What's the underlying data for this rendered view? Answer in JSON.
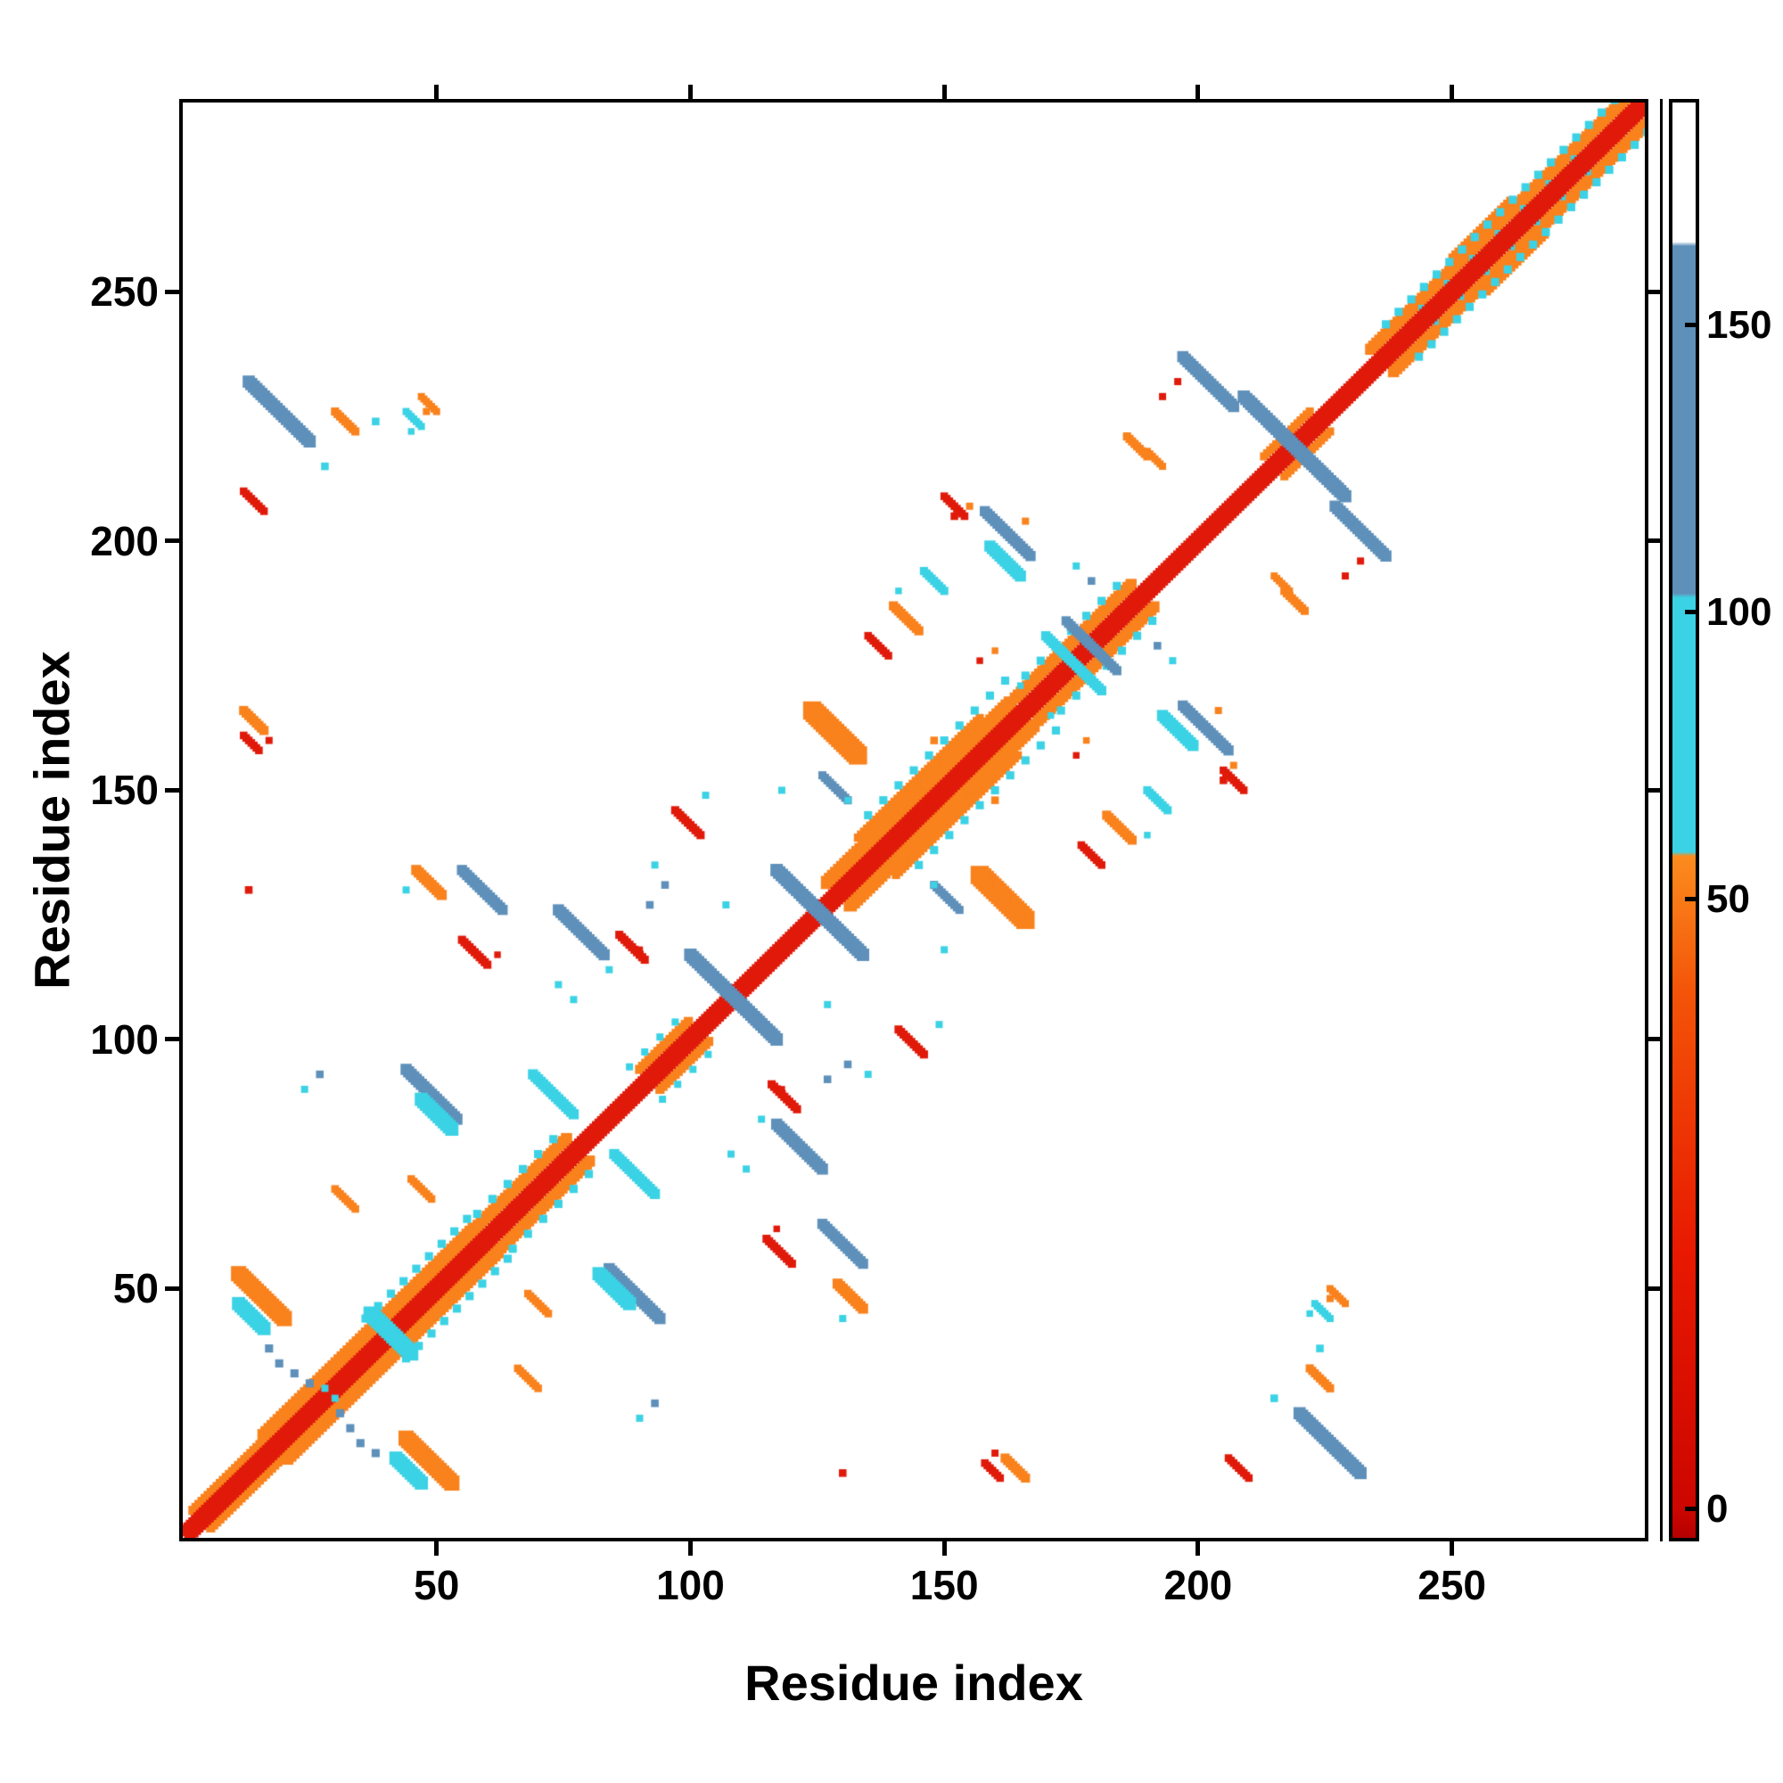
{
  "figure": {
    "background": "#ffffff"
  },
  "chart_data": {
    "type": "heatmap",
    "subtype": "protein-residue-contact-map",
    "title": "",
    "xlabel": "Residue index",
    "ylabel": "Residue index",
    "xlim": [
      0,
      288
    ],
    "ylim": [
      0,
      288
    ],
    "xticks": [
      50,
      100,
      150,
      200,
      250
    ],
    "yticks": [
      50,
      100,
      150,
      200,
      250
    ],
    "grid": false,
    "legend_position": "colorbar-right",
    "symmetric": true,
    "palette": {
      "red": "#e01a0a",
      "darkred": "#b50000",
      "orange": "#f9821d",
      "cyan": "#3bd2e5",
      "blue": "#5e90ba",
      "white": "#ffffff",
      "frame": "#000000"
    },
    "colorbar": {
      "ticks": [
        {
          "label": "0",
          "pos": 0.02
        },
        {
          "label": "50",
          "pos": 0.445
        },
        {
          "label": "100",
          "pos": 0.645
        },
        {
          "label": "150",
          "pos": 0.845
        }
      ],
      "stops": [
        {
          "pos": 0.0,
          "color": "#b50000"
        },
        {
          "pos": 0.02,
          "color": "#cc0600"
        },
        {
          "pos": 0.2,
          "color": "#e81900"
        },
        {
          "pos": 0.38,
          "color": "#f35408"
        },
        {
          "pos": 0.475,
          "color": "#fb8c1e"
        },
        {
          "pos": 0.478,
          "color": "#3bd2e5"
        },
        {
          "pos": 0.655,
          "color": "#3bd2e5"
        },
        {
          "pos": 0.658,
          "color": "#5e90ba"
        },
        {
          "pos": 0.9,
          "color": "#5e90ba"
        },
        {
          "pos": 0.903,
          "color": "#ffffff"
        },
        {
          "pos": 1.0,
          "color": "#ffffff"
        }
      ]
    },
    "diagonal": {
      "range": [
        0,
        288
      ],
      "offset": 1.2,
      "halfwidth": 1.8,
      "color": "red"
    },
    "flank_bands": [
      {
        "range": [
          2,
          16
        ],
        "offset": 3.5,
        "w": 1.8,
        "color": "orange"
      },
      {
        "range": [
          16,
          58
        ],
        "offset": 4.5,
        "w": 2.6,
        "color": "orange"
      },
      {
        "range": [
          57,
          76
        ],
        "offset": 4.5,
        "w": 2.2,
        "color": "orange"
      },
      {
        "range": [
          90,
          100
        ],
        "offset": 4.0,
        "w": 1.8,
        "color": "orange"
      },
      {
        "range": [
          127,
          163
        ],
        "offset": 4.5,
        "w": 2.6,
        "color": "orange"
      },
      {
        "range": [
          133,
          157
        ],
        "offset": 7.5,
        "w": 1.6,
        "color": "orange"
      },
      {
        "range": [
          164,
          187
        ],
        "offset": 4.5,
        "w": 2.2,
        "color": "orange"
      },
      {
        "range": [
          213,
          222
        ],
        "offset": 4.0,
        "w": 1.6,
        "color": "orange"
      },
      {
        "range": [
          234,
          286
        ],
        "offset": 4.5,
        "w": 2.2,
        "color": "orange"
      },
      {
        "range": [
          250,
          262
        ],
        "offset": 7.0,
        "w": 1.4,
        "color": "orange"
      }
    ],
    "fleck_bands": [
      {
        "range": [
          36,
          56
        ],
        "offset": 8.0,
        "step": 2.5,
        "size": 1.6
      },
      {
        "range": [
          58,
          75
        ],
        "offset": 7.0,
        "step": 3.0,
        "size": 1.6
      },
      {
        "range": [
          88,
          98
        ],
        "offset": 6.5,
        "step": 3.0,
        "size": 1.4
      },
      {
        "range": [
          135,
          162
        ],
        "offset": 10.0,
        "step": 3.0,
        "size": 1.6
      },
      {
        "range": [
          166,
          185
        ],
        "offset": 7.0,
        "step": 3.0,
        "size": 1.6
      },
      {
        "range": [
          237,
          284
        ],
        "offset": 6.5,
        "step": 2.5,
        "size": 1.6
      },
      {
        "range": [
          244,
          278
        ],
        "offset": 2.8,
        "step": 5.0,
        "size": 1.2
      }
    ],
    "anti_segments": [
      {
        "x": 13,
        "y": 232,
        "len": 12,
        "w": 2.4,
        "color": "blue"
      },
      {
        "x": 11,
        "y": 53,
        "len": 9,
        "w": 3.0,
        "color": "orange"
      },
      {
        "x": 11,
        "y": 47,
        "len": 5,
        "w": 2.6,
        "color": "cyan"
      },
      {
        "x": 37,
        "y": 45,
        "len": 5,
        "w": 2.8,
        "color": "cyan"
      },
      {
        "x": 44,
        "y": 94,
        "len": 10,
        "w": 2.2,
        "color": "blue"
      },
      {
        "x": 47,
        "y": 88,
        "len": 6,
        "w": 2.6,
        "color": "cyan"
      },
      {
        "x": 55,
        "y": 134,
        "len": 8,
        "w": 2.0,
        "color": "blue"
      },
      {
        "x": 55,
        "y": 120,
        "len": 5,
        "w": 1.6,
        "color": "red"
      },
      {
        "x": 69,
        "y": 93,
        "len": 8,
        "w": 2.0,
        "color": "cyan"
      },
      {
        "x": 74,
        "y": 126,
        "len": 9,
        "w": 2.2,
        "color": "blue"
      },
      {
        "x": 86,
        "y": 121,
        "len": 5,
        "w": 1.6,
        "color": "red"
      },
      {
        "x": 100,
        "y": 117,
        "len": 17,
        "w": 2.4,
        "color": "blue"
      },
      {
        "x": 97,
        "y": 146,
        "len": 5,
        "w": 1.6,
        "color": "red"
      },
      {
        "x": 117,
        "y": 134,
        "len": 17,
        "w": 2.4,
        "color": "blue"
      },
      {
        "x": 124,
        "y": 166,
        "len": 9,
        "w": 3.6,
        "color": "orange"
      },
      {
        "x": 126,
        "y": 153,
        "len": 5,
        "w": 1.6,
        "color": "blue"
      },
      {
        "x": 140,
        "y": 187,
        "len": 5,
        "w": 1.8,
        "color": "orange"
      },
      {
        "x": 146,
        "y": 194,
        "len": 4,
        "w": 1.6,
        "color": "cyan"
      },
      {
        "x": 135,
        "y": 181,
        "len": 4,
        "w": 1.5,
        "color": "red"
      },
      {
        "x": 150,
        "y": 209,
        "len": 4,
        "w": 1.5,
        "color": "red"
      },
      {
        "x": 158,
        "y": 206,
        "len": 9,
        "w": 2.0,
        "color": "blue"
      },
      {
        "x": 159,
        "y": 199,
        "len": 6,
        "w": 2.2,
        "color": "cyan"
      },
      {
        "x": 170,
        "y": 181,
        "len": 11,
        "w": 1.8,
        "color": "cyan"
      },
      {
        "x": 174,
        "y": 184,
        "len": 6,
        "w": 1.8,
        "color": "blue"
      },
      {
        "x": 197,
        "y": 237,
        "len": 10,
        "w": 2.2,
        "color": "blue"
      },
      {
        "x": 209,
        "y": 229,
        "len": 19,
        "w": 2.4,
        "color": "blue"
      },
      {
        "x": 30,
        "y": 226,
        "len": 4,
        "w": 1.6,
        "color": "orange"
      },
      {
        "x": 12,
        "y": 210,
        "len": 4,
        "w": 1.5,
        "color": "red"
      },
      {
        "x": 12,
        "y": 166,
        "len": 4,
        "w": 1.8,
        "color": "orange"
      },
      {
        "x": 12,
        "y": 161,
        "len": 3,
        "w": 1.5,
        "color": "red"
      },
      {
        "x": 46,
        "y": 134,
        "len": 5,
        "w": 2.0,
        "color": "orange"
      },
      {
        "x": 30,
        "y": 70,
        "len": 4,
        "w": 1.5,
        "color": "orange"
      },
      {
        "x": 45,
        "y": 72,
        "len": 4,
        "w": 1.5,
        "color": "orange"
      },
      {
        "x": 186,
        "y": 221,
        "len": 4,
        "w": 1.6,
        "color": "orange"
      },
      {
        "x": 190,
        "y": 218,
        "len": 3,
        "w": 1.4,
        "color": "orange"
      },
      {
        "x": 44,
        "y": 226,
        "len": 3,
        "w": 1.4,
        "color": "cyan"
      },
      {
        "x": 47,
        "y": 229,
        "len": 3,
        "w": 1.4,
        "color": "orange"
      }
    ],
    "points": [
      [
        17,
        38,
        "blue",
        1.6
      ],
      [
        19,
        35,
        "blue",
        1.6
      ],
      [
        22,
        33,
        "blue",
        1.6
      ],
      [
        25,
        31,
        "blue",
        1.6
      ],
      [
        28,
        30,
        "cyan",
        1.4
      ],
      [
        28,
        215,
        "cyan",
        1.5
      ],
      [
        38,
        224,
        "cyan",
        1.5
      ],
      [
        27,
        93,
        "blue",
        1.5
      ],
      [
        24,
        90,
        "cyan",
        1.4
      ],
      [
        13,
        130,
        "red",
        1.5
      ],
      [
        44,
        130,
        "cyan",
        1.4
      ],
      [
        74,
        111,
        "cyan",
        1.4
      ],
      [
        77,
        108,
        "cyan",
        1.4
      ],
      [
        84,
        114,
        "cyan",
        1.4
      ],
      [
        92,
        127,
        "blue",
        1.5
      ],
      [
        95,
        131,
        "blue",
        1.5
      ],
      [
        93,
        135,
        "cyan",
        1.4
      ],
      [
        103,
        149,
        "cyan",
        1.4
      ],
      [
        118,
        150,
        "cyan",
        1.4
      ],
      [
        107,
        127,
        "cyan",
        1.4
      ],
      [
        148,
        160,
        "orange",
        1.5
      ],
      [
        152,
        205,
        "red",
        1.5
      ],
      [
        155,
        207,
        "orange",
        1.4
      ],
      [
        176,
        195,
        "cyan",
        1.4
      ],
      [
        179,
        192,
        "blue",
        1.5
      ],
      [
        165,
        171,
        "cyan",
        1.3
      ],
      [
        48,
        226,
        "orange",
        1.4
      ],
      [
        45,
        222,
        "cyan",
        1.3
      ],
      [
        17,
        160,
        "red",
        1.4
      ],
      [
        62,
        117,
        "red",
        1.3
      ],
      [
        90,
        118,
        "red",
        1.3
      ],
      [
        131,
        148,
        "cyan",
        1.3
      ],
      [
        141,
        190,
        "cyan",
        1.3
      ],
      [
        157,
        176,
        "red",
        1.3
      ],
      [
        160,
        178,
        "orange",
        1.3
      ],
      [
        196,
        232,
        "red",
        1.4
      ],
      [
        193,
        229,
        "red",
        1.4
      ],
      [
        166,
        204,
        "orange",
        1.4
      ]
    ]
  }
}
